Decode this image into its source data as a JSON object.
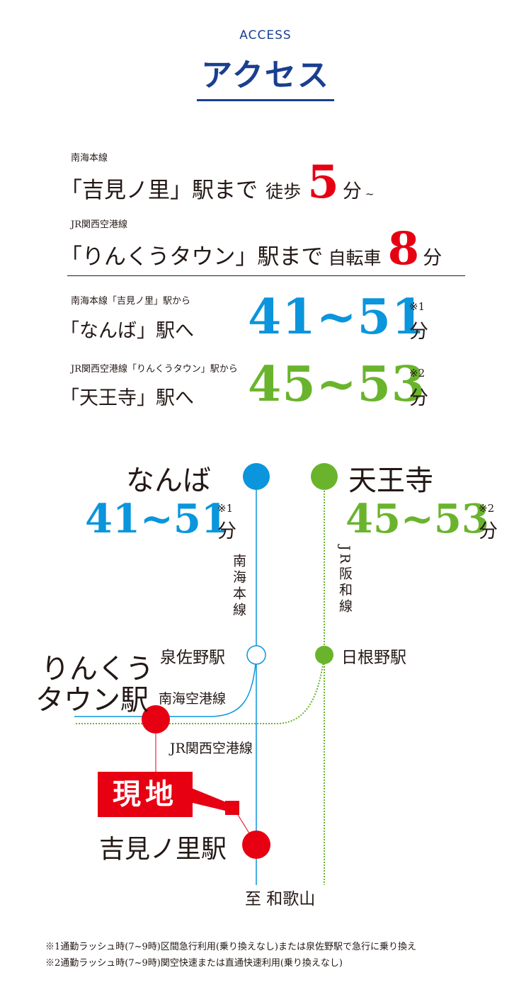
{
  "header": {
    "eyebrow": "ACCESS",
    "title": "アクセス"
  },
  "walk": {
    "line": "南海本線",
    "dest": "「吉見ノ里」駅まで",
    "mode": "徒歩",
    "minutes": "5",
    "unit": "分",
    "suffix": "~"
  },
  "bike": {
    "line": "JR関西空港線",
    "dest": "「りんくうタウン」駅まで",
    "mode": "自転車",
    "minutes": "8",
    "unit": "分"
  },
  "namba": {
    "route": "南海本線「吉見ノ里」駅から",
    "dest": "「なんば」駅へ",
    "time": "41~51",
    "note": "※1",
    "unit": "分"
  },
  "tennoji": {
    "route": "JR関西空港線「りんくうタウン」駅から",
    "dest": "「天王寺」駅へ",
    "time": "45~53",
    "note": "※2",
    "unit": "分"
  },
  "map": {
    "namba": {
      "name": "なんば",
      "time": "41~51",
      "note": "※1",
      "unit": "分"
    },
    "tennoji": {
      "name": "天王寺",
      "time": "45~53",
      "note": "※2",
      "unit": "分"
    },
    "nankai_main": "南海本線",
    "jr_hanwa": "JR阪和線",
    "izumisano": "泉佐野駅",
    "hineno": "日根野駅",
    "rinku_1": "りんくう",
    "rinku_2": "タウン駅",
    "nankai_airport": "南海空港線",
    "jr_airport": "JR関西空港線",
    "genchi": "現地",
    "yoshiminosato": "吉見ノ里駅",
    "wakayama": "至 和歌山",
    "colors": {
      "red": "#e60012",
      "blue": "#0a95dc",
      "green": "#6ab42d",
      "navy": "#1a3f8f"
    }
  },
  "notes": [
    "※1通勤ラッシュ時(7~9時)区間急行利用(乗り換えなし)または泉佐野駅で急行に乗り換え",
    "※2通勤ラッシュ時(7~9時)関空快速または直通快速利用(乗り換えなし)"
  ]
}
